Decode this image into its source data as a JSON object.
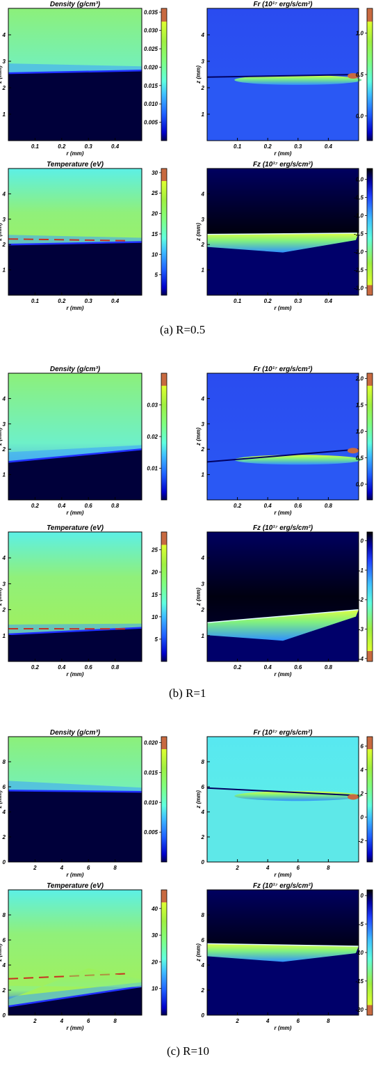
{
  "figure": {
    "captions": [
      "(a)  R=0.5",
      "(b)  R=1",
      "(c)  R=10"
    ]
  },
  "chart_data": [
    {
      "type": "heatmap",
      "group": "(a)  R=0.5",
      "title": "Density (g/cm³)",
      "xlabel": "r (mm)",
      "ylabel": "z (mm)",
      "xlim": [
        0,
        0.5
      ],
      "ylim": [
        0,
        5
      ],
      "xticks": [
        "0.1",
        "0.2",
        "0.3",
        "0.4"
      ],
      "yticks": [
        "1",
        "2",
        "3",
        "4"
      ],
      "colorbar": {
        "range": [
          0,
          0.036
        ],
        "ticks": [
          "0.005",
          "0.010",
          "0.015",
          "0.020",
          "0.025",
          "0.030",
          "0.035"
        ]
      },
      "front_z": [
        2.55,
        2.65
      ]
    },
    {
      "type": "heatmap",
      "group": "(a)  R=0.5",
      "title": "Fr (10¹⁷ erg/s/cm²)",
      "xlabel": "r (mm)",
      "ylabel": "z (mm)",
      "xlim": [
        0,
        0.5
      ],
      "ylim": [
        0,
        5
      ],
      "xticks": [
        "0.1",
        "0.2",
        "0.3",
        "0.4"
      ],
      "yticks": [
        "1",
        "2",
        "3",
        "4"
      ],
      "colorbar": {
        "range": [
          -0.3,
          1.3
        ],
        "ticks": [
          "0.0",
          "0.5",
          "1.0"
        ]
      },
      "front_z": [
        2.4,
        2.5
      ]
    },
    {
      "type": "heatmap",
      "group": "(a)  R=0.5",
      "title": "Temperature (eV)",
      "xlabel": "r (mm)",
      "ylabel": "z (mm)",
      "xlim": [
        0,
        0.5
      ],
      "ylim": [
        0,
        5
      ],
      "xticks": [
        "0.1",
        "0.2",
        "0.3",
        "0.4"
      ],
      "yticks": [
        "1",
        "2",
        "3",
        "4"
      ],
      "colorbar": {
        "range": [
          0,
          31
        ],
        "ticks": [
          "5",
          "10",
          "15",
          "20",
          "25",
          "30"
        ]
      },
      "front_z": [
        2.0,
        2.1
      ]
    },
    {
      "type": "heatmap",
      "group": "(a)  R=0.5",
      "title": "Fz (10¹⁷ erg/s/cm²)",
      "xlabel": "r (mm)",
      "ylabel": "z (mm)",
      "xlim": [
        0,
        0.5
      ],
      "ylim": [
        0,
        5
      ],
      "xticks": [
        "0.1",
        "0.2",
        "0.3",
        "0.4"
      ],
      "yticks": [
        "1",
        "2",
        "3",
        "4"
      ],
      "colorbar": {
        "range": [
          -3.2,
          0.3
        ],
        "ticks": [
          "0.0",
          "-0.5",
          "-1.0",
          "-1.5",
          "-2.0",
          "-2.5",
          "-3.0"
        ]
      },
      "front_z": [
        2.4,
        2.45
      ]
    },
    {
      "type": "heatmap",
      "group": "(b)  R=1",
      "title": "Density (g/cm³)",
      "xlabel": "r (mm)",
      "ylabel": "z (mm)",
      "xlim": [
        0,
        1
      ],
      "ylim": [
        0,
        5
      ],
      "xticks": [
        "0.2",
        "0.4",
        "0.6",
        "0.8"
      ],
      "yticks": [
        "1",
        "2",
        "3",
        "4"
      ],
      "colorbar": {
        "range": [
          0,
          0.04
        ],
        "ticks": [
          "0.01",
          "0.02",
          "0.03"
        ]
      },
      "front_z": [
        1.5,
        2.0
      ]
    },
    {
      "type": "heatmap",
      "group": "(b)  R=1",
      "title": "Fr (10¹⁷ erg/s/cm²)",
      "xlabel": "r (mm)",
      "ylabel": "z (mm)",
      "xlim": [
        0,
        1
      ],
      "ylim": [
        0,
        5
      ],
      "xticks": [
        "0.2",
        "0.4",
        "0.6",
        "0.8"
      ],
      "yticks": [
        "1",
        "2",
        "3",
        "4"
      ],
      "colorbar": {
        "range": [
          -0.3,
          2.1
        ],
        "ticks": [
          "0.0",
          "0.5",
          "1.0",
          "1.5",
          "2.0"
        ]
      },
      "front_z": [
        1.5,
        2.0
      ]
    },
    {
      "type": "heatmap",
      "group": "(b)  R=1",
      "title": "Temperature (eV)",
      "xlabel": "r (mm)",
      "ylabel": "z (mm)",
      "xlim": [
        0,
        1
      ],
      "ylim": [
        0,
        5
      ],
      "xticks": [
        "0.2",
        "0.4",
        "0.6",
        "0.8"
      ],
      "yticks": [
        "1",
        "2",
        "3",
        "4"
      ],
      "colorbar": {
        "range": [
          0,
          29
        ],
        "ticks": [
          "5",
          "10",
          "15",
          "20",
          "25"
        ]
      },
      "front_z": [
        1.05,
        1.3
      ]
    },
    {
      "type": "heatmap",
      "group": "(b)  R=1",
      "title": "Fz (10¹⁷ erg/s/cm²)",
      "xlabel": "r (mm)",
      "ylabel": "z (mm)",
      "xlim": [
        0,
        1
      ],
      "ylim": [
        0,
        5
      ],
      "xticks": [
        "0.2",
        "0.4",
        "0.6",
        "0.8"
      ],
      "yticks": [
        "1",
        "2",
        "3",
        "4"
      ],
      "colorbar": {
        "range": [
          -4.1,
          0.3
        ],
        "ticks": [
          "0",
          "-1",
          "-2",
          "-3",
          "-4"
        ]
      },
      "front_z": [
        1.5,
        2.0
      ]
    },
    {
      "type": "heatmap",
      "group": "(c)  R=10",
      "title": "Density (g/cm³)",
      "xlabel": "r (mm)",
      "ylabel": "z (mm)",
      "xlim": [
        0,
        10
      ],
      "ylim": [
        0,
        10
      ],
      "xticks": [
        "2",
        "4",
        "6",
        "8"
      ],
      "yticks": [
        "0",
        "2",
        "4",
        "6",
        "8"
      ],
      "colorbar": {
        "range": [
          0,
          0.021
        ],
        "ticks": [
          "0.005",
          "0.010",
          "0.015",
          "0.020"
        ]
      },
      "front_z": [
        5.7,
        5.6
      ]
    },
    {
      "type": "heatmap",
      "group": "(c)  R=10",
      "title": "Fr (10¹⁷ erg/s/cm²)",
      "xlabel": "r (mm)",
      "ylabel": "z (mm)",
      "xlim": [
        0,
        10
      ],
      "ylim": [
        0,
        10
      ],
      "xticks": [
        "2",
        "4",
        "6",
        "8"
      ],
      "yticks": [
        "0",
        "2",
        "4",
        "6",
        "8"
      ],
      "colorbar": {
        "range": [
          -3.8,
          6.8
        ],
        "ticks": [
          "-2",
          "0",
          "2",
          "4",
          "6"
        ]
      },
      "front_z": [
        5.9,
        5.3
      ]
    },
    {
      "type": "heatmap",
      "group": "(c)  R=10",
      "title": "Temperature (eV)",
      "xlabel": "r (mm)",
      "ylabel": "z (mm)",
      "xlim": [
        0,
        10
      ],
      "ylim": [
        0,
        10
      ],
      "xticks": [
        "2",
        "4",
        "6",
        "8"
      ],
      "yticks": [
        "0",
        "2",
        "4",
        "6",
        "8"
      ],
      "colorbar": {
        "range": [
          0,
          47
        ],
        "ticks": [
          "10",
          "20",
          "30",
          "40"
        ]
      },
      "front_z": [
        0.7,
        2.3
      ]
    },
    {
      "type": "heatmap",
      "group": "(c)  R=10",
      "title": "Fz (10¹⁷ erg/s/cm²)",
      "xlabel": "r (mm)",
      "ylabel": "z (mm)",
      "xlim": [
        0,
        10
      ],
      "ylim": [
        0,
        10
      ],
      "xticks": [
        "2",
        "4",
        "6",
        "8"
      ],
      "yticks": [
        "0",
        "2",
        "4",
        "6",
        "8"
      ],
      "colorbar": {
        "range": [
          -21,
          1
        ],
        "ticks": [
          "0",
          "-5",
          "-10",
          "-15",
          "-20"
        ]
      },
      "front_z": [
        5.7,
        5.5
      ]
    }
  ]
}
